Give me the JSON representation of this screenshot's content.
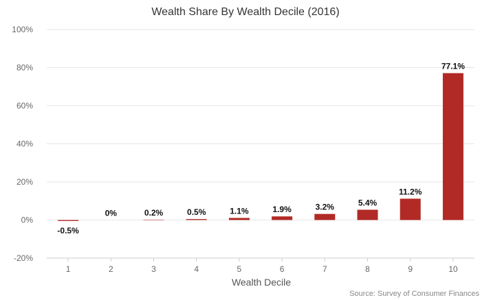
{
  "chart_data": {
    "type": "bar",
    "title": "Wealth Share By Wealth Decile (2016)",
    "xlabel": "Wealth Decile",
    "ylabel": "",
    "categories": [
      "1",
      "2",
      "3",
      "4",
      "5",
      "6",
      "7",
      "8",
      "9",
      "10"
    ],
    "values": [
      -0.5,
      0,
      0.2,
      0.5,
      1.1,
      1.9,
      3.2,
      5.4,
      11.2,
      77.1
    ],
    "data_labels": [
      "-0.5%",
      "0%",
      "0.2%",
      "0.5%",
      "1.1%",
      "1.9%",
      "3.2%",
      "5.4%",
      "11.2%",
      "77.1%"
    ],
    "ylim": [
      -20,
      100
    ],
    "y_ticks": [
      -20,
      0,
      20,
      40,
      60,
      80,
      100
    ],
    "y_tick_labels": [
      "-20%",
      "0%",
      "20%",
      "40%",
      "60%",
      "80%",
      "100%"
    ],
    "bar_color": "#b22a25",
    "grid": true,
    "legend": "none",
    "source": "Source: Survey of Consumer Finances"
  }
}
